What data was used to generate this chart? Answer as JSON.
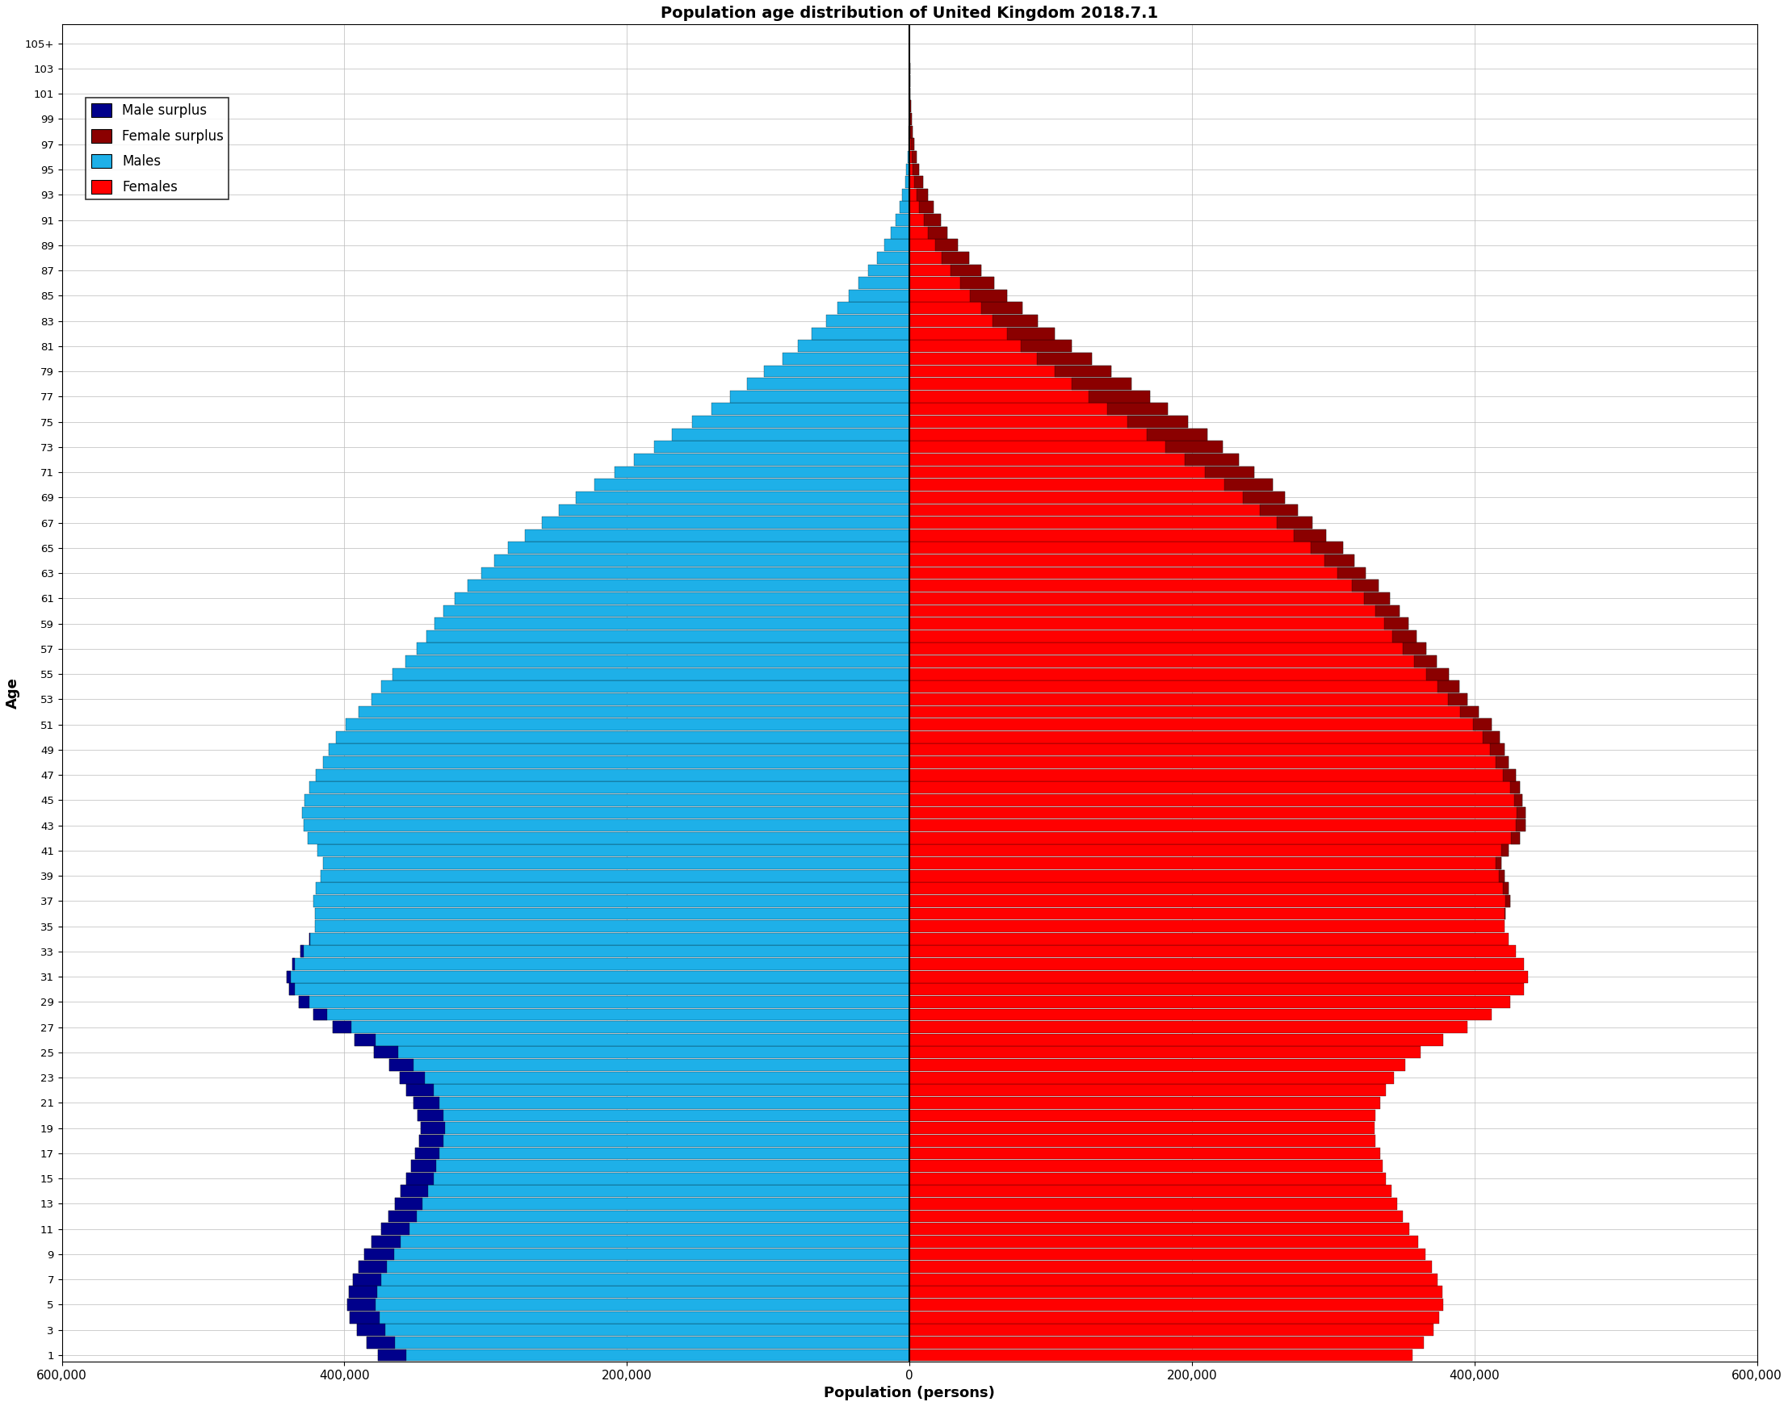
{
  "title": "Population age distribution of United Kingdom 2018.7.1",
  "xlabel": "Population (persons)",
  "ylabel": "Age",
  "xlim": 600000,
  "xticks": [
    -600000,
    -400000,
    -200000,
    0,
    200000,
    400000,
    600000
  ],
  "xticklabels": [
    "600,000",
    "400,000",
    "200,000",
    "0",
    "200,000",
    "400,000",
    "600,000"
  ],
  "male_color": "#1EB0E8",
  "female_color": "#FF0000",
  "male_surplus_color": "#00008B",
  "female_surplus_color": "#8B0000",
  "background_color": "#FFFFFF",
  "grid_color": "#BBBBBB",
  "ages": [
    1,
    2,
    3,
    4,
    5,
    6,
    7,
    8,
    9,
    10,
    11,
    12,
    13,
    14,
    15,
    16,
    17,
    18,
    19,
    20,
    21,
    22,
    23,
    24,
    25,
    26,
    27,
    28,
    29,
    30,
    31,
    32,
    33,
    34,
    35,
    36,
    37,
    38,
    39,
    40,
    41,
    42,
    43,
    44,
    45,
    46,
    47,
    48,
    49,
    50,
    51,
    52,
    53,
    54,
    55,
    56,
    57,
    58,
    59,
    60,
    61,
    62,
    63,
    64,
    65,
    66,
    67,
    68,
    69,
    70,
    71,
    72,
    73,
    74,
    75,
    76,
    77,
    78,
    79,
    80,
    81,
    82,
    83,
    84,
    85,
    86,
    87,
    88,
    89,
    90,
    91,
    92,
    93,
    94,
    95,
    96,
    97,
    98,
    99,
    100,
    101,
    102,
    103,
    104,
    105
  ],
  "males": [
    376000,
    384000,
    391000,
    396000,
    398000,
    397000,
    394000,
    390000,
    386000,
    381000,
    374000,
    369000,
    364000,
    360000,
    356000,
    353000,
    350000,
    347000,
    346000,
    348000,
    351000,
    356000,
    361000,
    368000,
    379000,
    393000,
    408000,
    422000,
    432000,
    439000,
    441000,
    437000,
    431000,
    425000,
    421000,
    421000,
    422000,
    420000,
    417000,
    415000,
    419000,
    426000,
    429000,
    430000,
    428000,
    425000,
    420000,
    415000,
    411000,
    406000,
    399000,
    390000,
    381000,
    374000,
    366000,
    357000,
    349000,
    342000,
    336000,
    330000,
    322000,
    313000,
    303000,
    294000,
    284000,
    272000,
    260000,
    248000,
    236000,
    223000,
    209000,
    195000,
    181000,
    168000,
    154000,
    140000,
    127000,
    115000,
    103000,
    90000,
    79000,
    69000,
    59000,
    51000,
    43000,
    36000,
    29000,
    23000,
    18000,
    13000,
    10000,
    7000,
    5000,
    3200,
    2100,
    1400,
    900,
    560,
    340,
    200,
    115,
    65,
    38,
    20,
    8
  ],
  "females": [
    356000,
    364000,
    371000,
    375000,
    378000,
    377000,
    374000,
    370000,
    365000,
    360000,
    354000,
    349000,
    345000,
    341000,
    337000,
    335000,
    333000,
    330000,
    329000,
    330000,
    333000,
    337000,
    343000,
    351000,
    362000,
    378000,
    395000,
    412000,
    425000,
    435000,
    438000,
    435000,
    429000,
    424000,
    421000,
    422000,
    425000,
    424000,
    421000,
    419000,
    424000,
    432000,
    436000,
    436000,
    434000,
    432000,
    429000,
    424000,
    421000,
    418000,
    412000,
    403000,
    395000,
    389000,
    382000,
    373000,
    366000,
    359000,
    353000,
    347000,
    340000,
    332000,
    323000,
    315000,
    307000,
    295000,
    285000,
    275000,
    266000,
    257000,
    244000,
    233000,
    222000,
    211000,
    197000,
    183000,
    170000,
    157000,
    143000,
    129000,
    115000,
    103000,
    91000,
    80000,
    69000,
    60000,
    51000,
    42000,
    34000,
    27000,
    22000,
    17000,
    13000,
    9500,
    7000,
    5000,
    3500,
    2400,
    1600,
    1000,
    640,
    400,
    250,
    150,
    60
  ],
  "legend_labels": [
    "Male surplus",
    "Female surplus",
    "Males",
    "Females"
  ],
  "legend_colors": [
    "#00008B",
    "#8B0000",
    "#1EB0E8",
    "#FF0000"
  ]
}
